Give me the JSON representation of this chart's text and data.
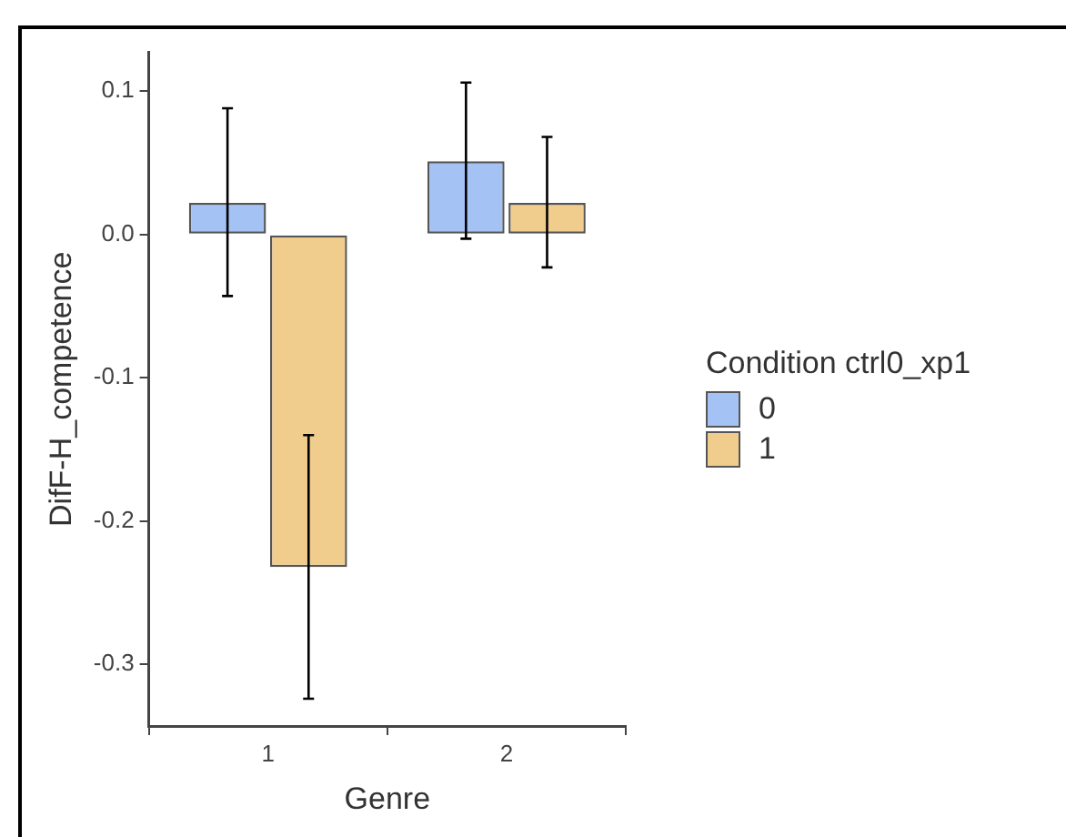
{
  "chart_data": {
    "type": "bar",
    "xlabel": "Genre",
    "ylabel": "DifF-H_competence",
    "legend_title": "Condition ctrl0_xp1",
    "categories": [
      "1",
      "2"
    ],
    "series": [
      {
        "name": "0",
        "color": "#a4c2f4",
        "values": [
          0.022,
          0.051
        ],
        "errors": [
          [
            -0.043,
            0.088
          ],
          [
            -0.003,
            0.106
          ]
        ]
      },
      {
        "name": "1",
        "color": "#f0cd8d",
        "values": [
          -0.232,
          0.022
        ],
        "errors": [
          [
            -0.324,
            -0.14
          ],
          [
            -0.023,
            0.068
          ]
        ]
      }
    ],
    "ylim": [
      -0.343,
      0.127
    ],
    "yticks": [
      {
        "value": 0.1,
        "label": "0.1"
      },
      {
        "value": 0,
        "label": "0.0"
      },
      {
        "value": -0.1,
        "label": "-0.1"
      },
      {
        "value": -0.2,
        "label": "-0.2"
      },
      {
        "value": -0.3,
        "label": "-0.3"
      }
    ],
    "grid": false,
    "legend": "right"
  }
}
